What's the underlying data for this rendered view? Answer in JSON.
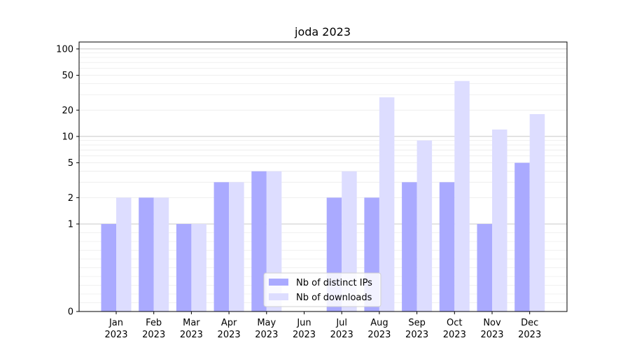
{
  "chart_data": {
    "type": "bar",
    "title": "joda 2023",
    "xlabel": "",
    "ylabel": "",
    "y_scale": "symlog",
    "ylim": [
      0,
      120
    ],
    "y_ticks": [
      0,
      1,
      2,
      5,
      10,
      20,
      50,
      100
    ],
    "grid": true,
    "legend_position": "lower center",
    "categories": [
      [
        "Jan",
        "2023"
      ],
      [
        "Feb",
        "2023"
      ],
      [
        "Mar",
        "2023"
      ],
      [
        "Apr",
        "2023"
      ],
      [
        "May",
        "2023"
      ],
      [
        "Jun",
        "2023"
      ],
      [
        "Jul",
        "2023"
      ],
      [
        "Aug",
        "2023"
      ],
      [
        "Sep",
        "2023"
      ],
      [
        "Oct",
        "2023"
      ],
      [
        "Nov",
        "2023"
      ],
      [
        "Dec",
        "2023"
      ]
    ],
    "series": [
      {
        "name": "Nb of distinct IPs",
        "color": "#aaaaff",
        "values": [
          1,
          2,
          1,
          3,
          4,
          0,
          2,
          2,
          3,
          3,
          1,
          5
        ]
      },
      {
        "name": "Nb of downloads",
        "color": "#ddddff",
        "values": [
          2,
          2,
          1,
          3,
          4,
          0,
          4,
          28,
          9,
          43,
          12,
          18
        ]
      }
    ]
  }
}
